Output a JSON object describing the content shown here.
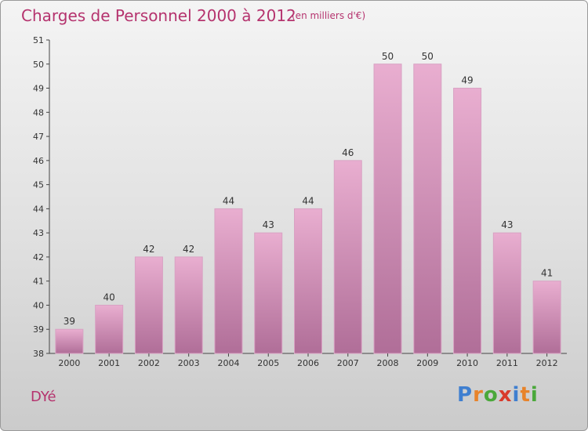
{
  "header": {
    "title": "Charges de Personnel 2000 à 2012",
    "subtitle": "(en milliers d'€)"
  },
  "footer": {
    "town": "DYé",
    "logo": [
      "P",
      "r",
      "o",
      "x",
      "i",
      "t",
      "i"
    ]
  },
  "colors": {
    "bar_light": "#e9aed0",
    "bar_dark": "#b06e98",
    "title": "#b5336e",
    "logo": [
      "#3f7fd0",
      "#e8832a",
      "#4aa83a",
      "#d93a2b",
      "#3f7fd0",
      "#e8832a",
      "#4aa83a"
    ]
  },
  "chart_data": {
    "type": "bar",
    "categories": [
      "2000",
      "2001",
      "2002",
      "2003",
      "2004",
      "2005",
      "2006",
      "2007",
      "2008",
      "2009",
      "2010",
      "2011",
      "2012"
    ],
    "values": [
      39,
      40,
      42,
      42,
      44,
      43,
      44,
      46,
      50,
      50,
      49,
      43,
      41
    ],
    "ylim": [
      38,
      51
    ],
    "yticks": [
      38,
      39,
      40,
      41,
      42,
      43,
      44,
      45,
      46,
      47,
      48,
      49,
      50,
      51
    ],
    "grid": false
  }
}
